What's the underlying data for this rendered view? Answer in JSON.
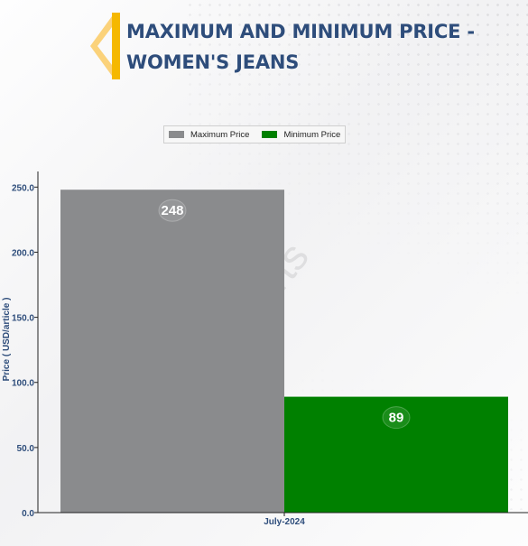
{
  "header": {
    "title": "MAXIMUM AND MINIMUM PRICE - WOMEN'S JEANS"
  },
  "colors": {
    "title": "#2e4d7b",
    "logo_accent": "#f5b800",
    "max_series": "#8a8b8d",
    "min_series": "#008000"
  },
  "watermark": "DNJ Reports",
  "legend": [
    {
      "label": "Maximum Price",
      "color": "#8a8b8d"
    },
    {
      "label": "Minimum Price",
      "color": "#008000"
    }
  ],
  "chart_data": {
    "type": "bar",
    "title": "MAXIMUM AND MINIMUM PRICE - WOMEN'S JEANS",
    "categories": [
      "July-2024"
    ],
    "series": [
      {
        "name": "Maximum Price",
        "values": [
          248
        ],
        "color": "#8a8b8d"
      },
      {
        "name": "Minimum Price",
        "values": [
          89
        ],
        "color": "#008000"
      }
    ],
    "xlabel": "",
    "ylabel": "Price ( USD/article )",
    "ylim": [
      0,
      262
    ],
    "yticks": [
      "0.0",
      "50.0",
      "100.0",
      "150.0",
      "200.0",
      "250.0"
    ],
    "grid": false,
    "legend_position": "top-center",
    "data_labels": [
      "248",
      "89"
    ]
  }
}
